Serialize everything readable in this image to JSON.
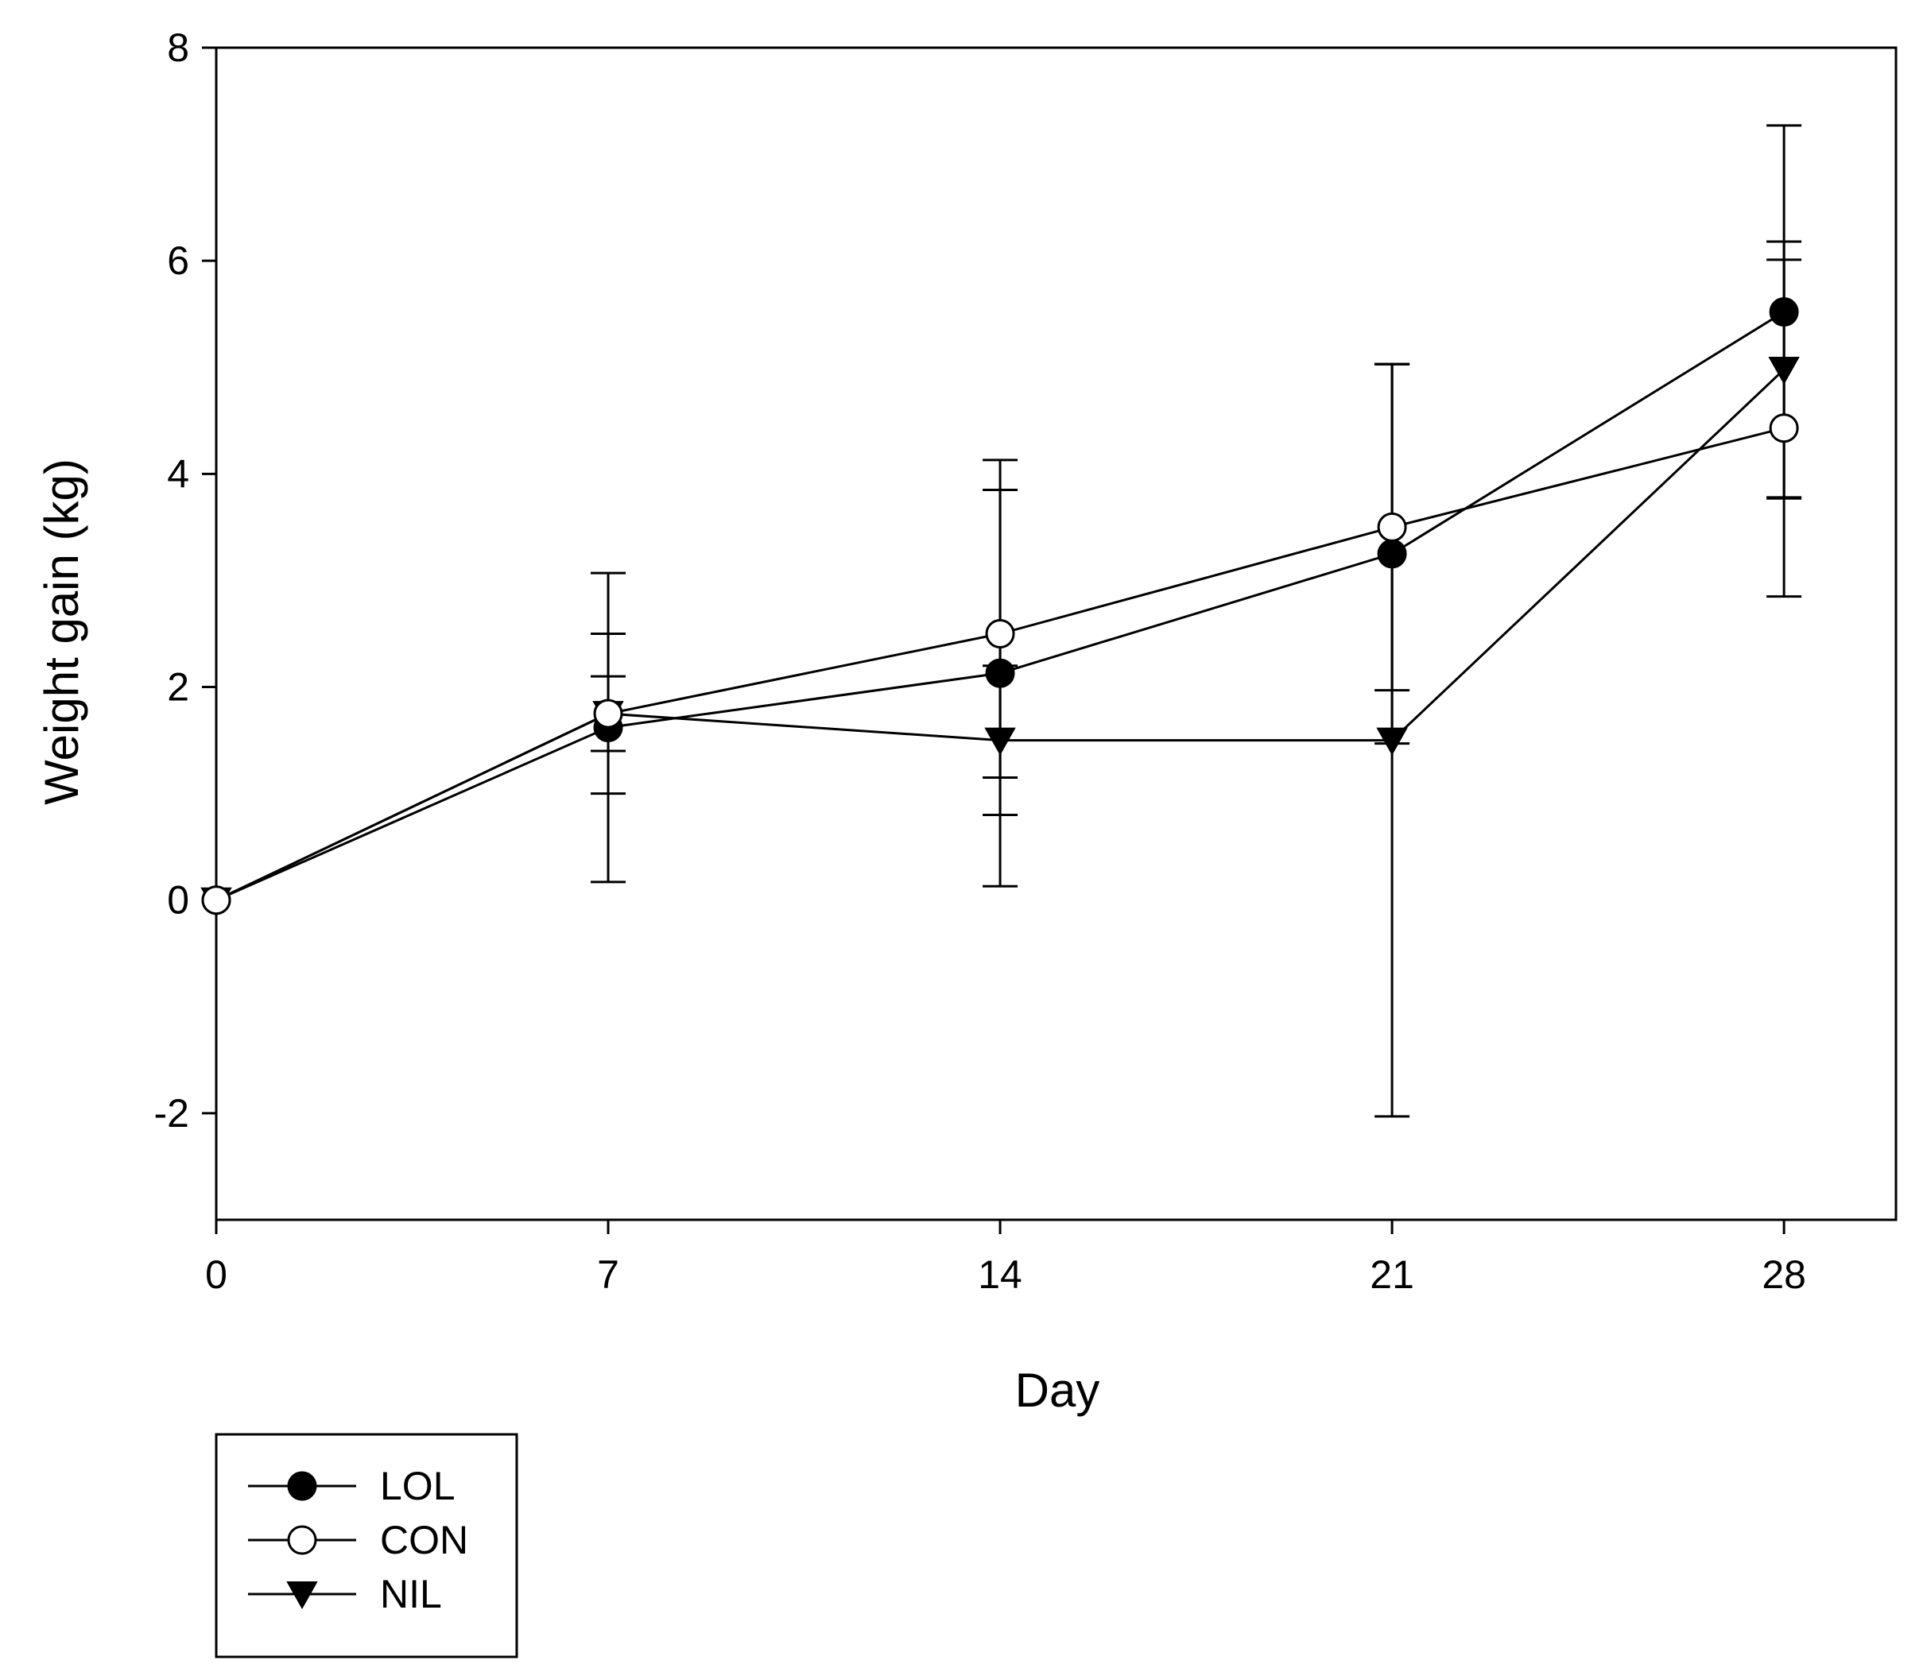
{
  "chart_data": {
    "type": "line",
    "title": "",
    "xlabel": "Day",
    "ylabel": "Weight gain (kg)",
    "xlim": [
      0,
      30
    ],
    "ylim": [
      -3,
      8
    ],
    "xticks": [
      0,
      7,
      14,
      21,
      28
    ],
    "xtick_labels": [
      "0",
      "7",
      "14",
      "21",
      "28"
    ],
    "yticks": [
      -2,
      0,
      2,
      4,
      6,
      8
    ],
    "ytick_labels": [
      "-2",
      "0",
      "2",
      "4",
      "6",
      "8"
    ],
    "grid": false,
    "legend_position": "bottom-left",
    "x": [
      0,
      7,
      14,
      21,
      28
    ],
    "series": [
      {
        "name": "LOL",
        "marker": "filled-circle",
        "values": [
          0,
          1.62,
          2.13,
          3.25,
          5.52
        ],
        "error": [
          0,
          1.45,
          2.0,
          1.78,
          1.75
        ]
      },
      {
        "name": "CON",
        "marker": "open-circle",
        "values": [
          0,
          1.75,
          2.5,
          3.5,
          4.43
        ],
        "error": [
          0,
          0.75,
          1.35,
          1.53,
          1.58
        ]
      },
      {
        "name": "NIL",
        "marker": "filled-triangle-down",
        "values": [
          0,
          1.75,
          1.5,
          1.5,
          4.98
        ],
        "error": [
          0,
          0.35,
          0.7,
          3.53,
          1.2
        ]
      }
    ],
    "legend": [
      "LOL",
      "CON",
      "NIL"
    ]
  }
}
